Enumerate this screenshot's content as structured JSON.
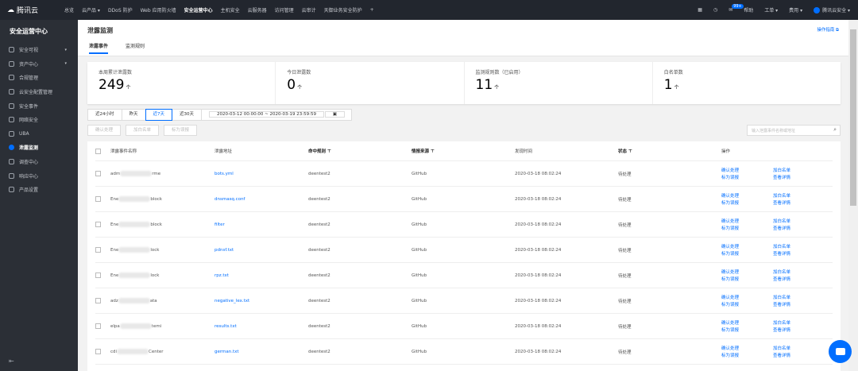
{
  "topbar": {
    "brand": "腾讯云",
    "nav": [
      "总览",
      "云产品 ▾",
      "DDoS 防护",
      "Web 应用防火墙",
      "安全运营中心",
      "主机安全",
      "云服务器",
      "访问管理",
      "云审计",
      "天御业务安全防护",
      "+"
    ],
    "active_index": 4,
    "notification_badge": "99+",
    "help": "帮助",
    "ticket": "工单 ▾",
    "fee": "费用 ▾",
    "user": "腾讯云安全 ▾"
  },
  "sidebar": {
    "title": "安全运营中心",
    "items": [
      {
        "label": "安全可视",
        "arrow": true
      },
      {
        "label": "资产中心",
        "arrow": true
      },
      {
        "label": "合规管理"
      },
      {
        "label": "云安全配置管理"
      },
      {
        "label": "安全事件"
      },
      {
        "label": "网络安全"
      },
      {
        "label": "UBA"
      },
      {
        "label": "泄露监测",
        "active": true
      },
      {
        "label": "调查中心"
      },
      {
        "label": "响应中心"
      },
      {
        "label": "产品设置"
      }
    ]
  },
  "header": {
    "title": "泄露监测",
    "tabs": [
      "泄露事件",
      "监测规则"
    ],
    "guide": "操作指南 ⧉"
  },
  "stats": [
    {
      "label": "本周累计泄露数",
      "value": "249",
      "unit": "个"
    },
    {
      "label": "今日泄露数",
      "value": "0",
      "unit": "个"
    },
    {
      "label": "监测规则数（已启用）",
      "value": "11",
      "unit": "个"
    },
    {
      "label": "白名单数",
      "value": "1",
      "unit": "个"
    }
  ],
  "filters": {
    "ranges": [
      "近24小时",
      "昨天",
      "近7天",
      "近30天"
    ],
    "selected": "近7天",
    "date_range": "2020-03-12 00:00:00 ~ 2020-03-19 23:59:59"
  },
  "actions": [
    "确认处理",
    "加白名单",
    "标为误报"
  ],
  "search": {
    "placeholder": "输入泄露事件名称或地址"
  },
  "table": {
    "columns": [
      "泄露事件名称",
      "泄露地址",
      "命中规则 ⊤",
      "情报来源 ⊤",
      "发现时间",
      "状态 ⊤",
      "操作"
    ],
    "ops": [
      "确认处理",
      "加白名单",
      "标为误报",
      "查看详情"
    ],
    "rows": [
      {
        "name_start": "adm",
        "name_end": "rme",
        "address": "bots.yml",
        "rule": "deentest2",
        "source": "GitHub",
        "time": "2020-03-18 08:02:24",
        "status": "待处理"
      },
      {
        "name_start": "Ene",
        "name_end": "block",
        "address": "dnsmasq.conf",
        "rule": "deentest2",
        "source": "GitHub",
        "time": "2020-03-18 08:02:24",
        "status": "待处理"
      },
      {
        "name_start": "Ene",
        "name_end": "block",
        "address": "filter",
        "rule": "deentest2",
        "source": "GitHub",
        "time": "2020-03-18 08:02:24",
        "status": "待处理"
      },
      {
        "name_start": "Ene",
        "name_end": "lock",
        "address": "pdnsf.txt",
        "rule": "deentest2",
        "source": "GitHub",
        "time": "2020-03-18 08:02:24",
        "status": "待处理"
      },
      {
        "name_start": "Ene",
        "name_end": "lock",
        "address": "rpz.txt",
        "rule": "deentest2",
        "source": "GitHub",
        "time": "2020-03-18 08:02:24",
        "status": "待处理"
      },
      {
        "name_start": "adz",
        "name_end": "ata",
        "address": "negative_lex.txt",
        "rule": "deentest2",
        "source": "GitHub",
        "time": "2020-03-18 08:02:24",
        "status": "待处理"
      },
      {
        "name_start": "elpa",
        "name_end": "temi",
        "address": "results.txt",
        "rule": "deentest2",
        "source": "GitHub",
        "time": "2020-03-18 08:02:24",
        "status": "待处理"
      },
      {
        "name_start": "cdi",
        "name_end": "Center",
        "address": "german.txt",
        "rule": "deentest2",
        "source": "GitHub",
        "time": "2020-03-18 08:02:24",
        "status": "待处理"
      }
    ]
  },
  "colors": {
    "accent": "#006eff",
    "topbar": "#22262e",
    "sidebar": "#2b2f36"
  }
}
